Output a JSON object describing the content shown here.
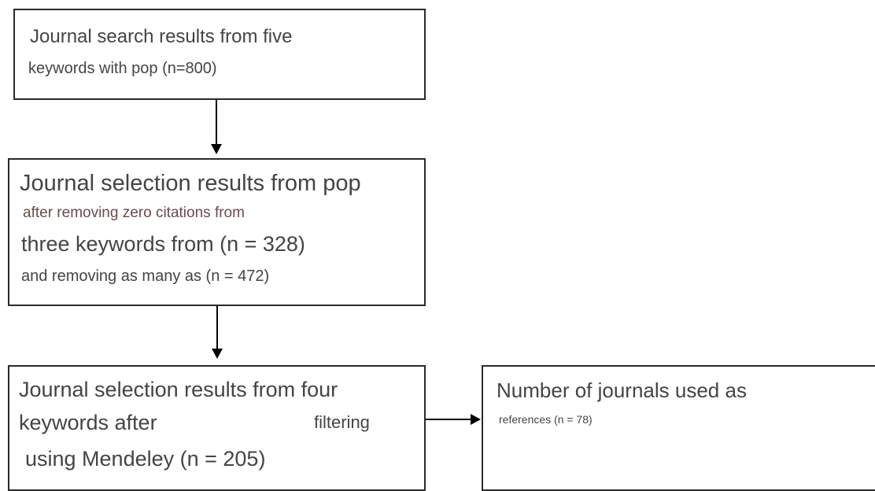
{
  "boxes": {
    "search_results": {
      "line1": "Journal search results from five",
      "line2": "keywords with pop (n=800)"
    },
    "selection_pop": {
      "line1": "Journal selection results from pop",
      "line2": "after removing zero citations from",
      "line3": "three keywords from (n = 328)",
      "line4": "and removing as many as (n = 472)"
    },
    "selection_mendeley": {
      "line1": "Journal selection results from four",
      "line2a": "keywords after",
      "line2b": "filtering",
      "line3": "using Mendeley (n = 205)"
    },
    "references": {
      "line1": "Number of journals used as",
      "line2": "references (n = 78)"
    }
  },
  "colors": {
    "border": "#2a2a2a",
    "text": "#444444",
    "accent_text": "#6b4a4a",
    "arrow": "#000000"
  }
}
